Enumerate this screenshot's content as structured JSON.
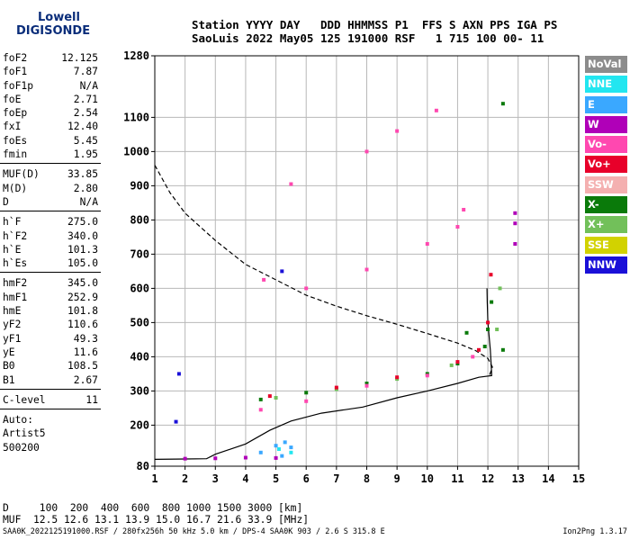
{
  "logo": {
    "line1": "Lowell",
    "line2": "DIGISONDE"
  },
  "header": {
    "line1": "Station YYYY DAY   DDD HHMMSS P1  FFS S AXN PPS IGA PS",
    "line2": "SaoLuis 2022 May05 125 191000 RSF   1 715 100 00- 11"
  },
  "params": [
    {
      "label": "foF2",
      "value": "12.125"
    },
    {
      "label": "foF1",
      "value": "7.87"
    },
    {
      "label": "foF1p",
      "value": "N/A"
    },
    {
      "label": "foE",
      "value": "2.71"
    },
    {
      "label": "foEp",
      "value": "2.54"
    },
    {
      "label": "fxI",
      "value": "12.40"
    },
    {
      "label": "foEs",
      "value": "5.45"
    },
    {
      "label": "fmin",
      "value": "1.95"
    },
    {
      "sep": true
    },
    {
      "label": "MUF(D)",
      "value": "33.85"
    },
    {
      "label": "M(D)",
      "value": "2.80"
    },
    {
      "label": "D",
      "value": "N/A"
    },
    {
      "sep": true
    },
    {
      "label": "h`F",
      "value": "275.0"
    },
    {
      "label": "h`F2",
      "value": "340.0"
    },
    {
      "label": "h`E",
      "value": "101.3"
    },
    {
      "label": "h`Es",
      "value": "105.0"
    },
    {
      "sep": true
    },
    {
      "label": "hmF2",
      "value": "345.0"
    },
    {
      "label": "hmF1",
      "value": "252.9"
    },
    {
      "label": "hmE",
      "value": "101.8"
    },
    {
      "label": "yF2",
      "value": "110.6"
    },
    {
      "label": "yF1",
      "value": "49.3"
    },
    {
      "label": "yE",
      "value": "11.6"
    },
    {
      "label": "B0",
      "value": "108.5"
    },
    {
      "label": "B1",
      "value": "2.67"
    },
    {
      "sep": true
    },
    {
      "label": "C-level",
      "value": "11"
    },
    {
      "sep": true
    },
    {
      "text": "Auto:"
    },
    {
      "text": "Artist5"
    },
    {
      "text": "500200"
    }
  ],
  "legend": [
    {
      "label": "NoVal",
      "color": "#8c8c8c"
    },
    {
      "label": "NNE",
      "color": "#22e6f0"
    },
    {
      "label": "E",
      "color": "#3aa8ff"
    },
    {
      "label": "W",
      "color": "#b000b8"
    },
    {
      "label": "Vo-",
      "color": "#ff48b0"
    },
    {
      "label": "Vo+",
      "color": "#e8002a"
    },
    {
      "label": "SSW",
      "color": "#f4b0b0"
    },
    {
      "label": "X-",
      "color": "#0a7a0a"
    },
    {
      "label": "X+",
      "color": "#72c05a"
    },
    {
      "label": "SSE",
      "color": "#d2d200"
    },
    {
      "label": "NNW",
      "color": "#1a10d8"
    }
  ],
  "dmuf": {
    "line1": "D     100  200  400  600  800 1000 1500 3000 [km]",
    "line2": "MUF  12.5 12.6 13.1 13.9 15.0 16.7 21.6 33.9 [MHz]"
  },
  "footer": {
    "left": "SAA0K_2022125191000.RSF / 280fx256h 50 kHz 5.0 km / DPS-4 SAA0K 903 / 2.6 S 315.8 E",
    "right": "Ion2Png 1.3.17"
  },
  "chart_data": {
    "type": "scatter",
    "x": [
      1,
      2,
      3,
      4,
      5,
      6,
      7,
      8,
      9,
      10,
      11,
      12,
      13,
      14,
      15
    ],
    "y_ticks": [
      80,
      200,
      300,
      400,
      500,
      600,
      700,
      800,
      900,
      1000,
      1100,
      1280
    ],
    "xlim": [
      1,
      15
    ],
    "ylim": [
      80,
      1280
    ],
    "grid": true,
    "legend": "right",
    "series": [
      {
        "name": "X-",
        "color": "#0a7a0a",
        "points": [
          [
            4.5,
            275
          ],
          [
            6,
            295
          ],
          [
            8,
            322
          ],
          [
            10,
            350
          ],
          [
            11,
            380
          ],
          [
            11.9,
            430
          ],
          [
            12.0,
            480
          ],
          [
            12.12,
            560
          ],
          [
            12.5,
            420
          ],
          [
            12.5,
            1140
          ],
          [
            11.3,
            470
          ]
        ]
      },
      {
        "name": "X+",
        "color": "#72c05a",
        "points": [
          [
            5,
            280
          ],
          [
            7,
            305
          ],
          [
            9,
            335
          ],
          [
            10.8,
            375
          ],
          [
            12.4,
            600
          ],
          [
            12.3,
            480
          ]
        ]
      },
      {
        "name": "Vo-",
        "color": "#ff48b0",
        "points": [
          [
            4.6,
            625
          ],
          [
            6,
            600
          ],
          [
            8,
            655
          ],
          [
            10,
            730
          ],
          [
            11,
            780
          ],
          [
            11.2,
            830
          ],
          [
            5.5,
            905
          ],
          [
            8,
            1000
          ],
          [
            9,
            1060
          ],
          [
            10.3,
            1120
          ],
          [
            4.5,
            245
          ],
          [
            6,
            270
          ],
          [
            8,
            315
          ],
          [
            10,
            345
          ],
          [
            11.5,
            400
          ]
        ]
      },
      {
        "name": "Vo+",
        "color": "#e8002a",
        "points": [
          [
            4.8,
            285
          ],
          [
            7,
            310
          ],
          [
            9,
            340
          ],
          [
            11,
            385
          ],
          [
            11.7,
            420
          ],
          [
            12.0,
            500
          ],
          [
            12.1,
            640
          ]
        ]
      },
      {
        "name": "E",
        "color": "#3aa8ff",
        "points": [
          [
            5,
            140
          ],
          [
            5.3,
            150
          ],
          [
            5.5,
            135
          ],
          [
            5.2,
            110
          ],
          [
            4.5,
            120
          ]
        ]
      },
      {
        "name": "W",
        "color": "#b000b8",
        "points": [
          [
            2,
            102
          ],
          [
            3,
            103
          ],
          [
            4,
            105
          ],
          [
            5,
            104
          ],
          [
            12.9,
            820
          ],
          [
            12.9,
            790
          ],
          [
            12.9,
            730
          ]
        ]
      },
      {
        "name": "NNW",
        "color": "#1a10d8",
        "points": [
          [
            1.8,
            350
          ],
          [
            1.7,
            210
          ],
          [
            5.2,
            650
          ]
        ]
      },
      {
        "name": "NNE",
        "color": "#22e6f0",
        "points": [
          [
            5.1,
            130
          ],
          [
            5.5,
            120
          ]
        ]
      }
    ],
    "curves": [
      {
        "name": "profile",
        "style": "solid",
        "points": [
          [
            1,
            100
          ],
          [
            2,
            101
          ],
          [
            2.71,
            101.8
          ],
          [
            3,
            115
          ],
          [
            4,
            145
          ],
          [
            4.8,
            185
          ],
          [
            5.5,
            212
          ],
          [
            6.5,
            235
          ],
          [
            7.87,
            252.9
          ],
          [
            9,
            280
          ],
          [
            10,
            300
          ],
          [
            11,
            322
          ],
          [
            11.7,
            340
          ],
          [
            12.125,
            345
          ],
          [
            12.12,
            360
          ],
          [
            12.08,
            420
          ],
          [
            12.0,
            500
          ],
          [
            11.98,
            560
          ],
          [
            11.97,
            600
          ]
        ]
      },
      {
        "name": "model",
        "style": "dashed",
        "points": [
          [
            1,
            960
          ],
          [
            1.5,
            880
          ],
          [
            2,
            820
          ],
          [
            3,
            740
          ],
          [
            4,
            670
          ],
          [
            5,
            625
          ],
          [
            6,
            580
          ],
          [
            7,
            548
          ],
          [
            8,
            520
          ],
          [
            9,
            495
          ],
          [
            10,
            468
          ],
          [
            11,
            440
          ],
          [
            11.6,
            418
          ],
          [
            12,
            395
          ],
          [
            12.15,
            370
          ],
          [
            12.05,
            345
          ]
        ]
      }
    ]
  }
}
